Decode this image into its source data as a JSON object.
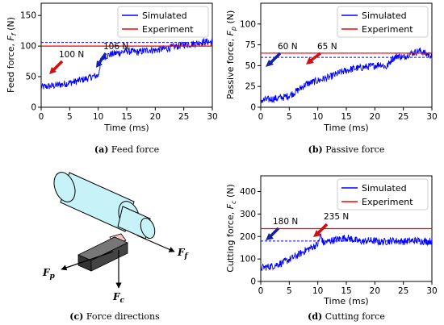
{
  "chart_data": [
    {
      "type": "line",
      "caption_label": "(a)",
      "caption_text": "Feed force",
      "xlabel": "Time (ms)",
      "ylabel": "Feed force, F_f (N)",
      "ylabel_base": "Feed force,",
      "ylabel_symbol": "F",
      "ylabel_sub": "f",
      "ylabel_unit": "(N)",
      "xlim": [
        0,
        30
      ],
      "ylim": [
        0,
        170
      ],
      "xticks": [
        0,
        5,
        10,
        15,
        20,
        25,
        30
      ],
      "yticks": [
        0,
        50,
        100,
        150
      ],
      "legend": {
        "position": "top-right",
        "entries": [
          "Simulated",
          "Experiment"
        ]
      },
      "series": [
        {
          "name": "Simulated",
          "color": "#0000ff",
          "x": [
            0,
            2,
            4,
            6,
            8,
            9,
            10,
            10.5,
            11,
            12,
            13,
            14,
            15,
            16,
            17,
            18,
            19,
            20,
            21,
            22,
            23,
            24,
            25,
            26,
            27,
            28,
            29,
            30
          ],
          "y": [
            33,
            35,
            38,
            42,
            47,
            50,
            52,
            78,
            82,
            86,
            88,
            90,
            92,
            91,
            90,
            92,
            94,
            93,
            95,
            96,
            98,
            100,
            102,
            103,
            104,
            106,
            107,
            106
          ]
        },
        {
          "name": "Experiment",
          "color": "#ff0000",
          "x": [
            0,
            30
          ],
          "y": [
            100,
            100
          ]
        }
      ],
      "reference_lines": [
        {
          "value": 100,
          "label": "100 N",
          "color": "#ff0000"
        },
        {
          "value": 106,
          "label": "106 N",
          "color": "#0000ff"
        }
      ],
      "annotations": [
        {
          "text": "100 N",
          "arrow_color": "#cc1111"
        },
        {
          "text": "106 N",
          "arrow_color": "#1122aa"
        }
      ]
    },
    {
      "type": "line",
      "caption_label": "(b)",
      "caption_text": "Passive force",
      "xlabel": "Time (ms)",
      "ylabel": "Passive force, F_p (N)",
      "ylabel_base": "Passive force,",
      "ylabel_symbol": "F",
      "ylabel_sub": "p",
      "ylabel_unit": "(N)",
      "xlim": [
        0,
        30
      ],
      "ylim": [
        0,
        125
      ],
      "xticks": [
        0,
        5,
        10,
        15,
        20,
        25,
        30
      ],
      "yticks": [
        0,
        25,
        50,
        75,
        100
      ],
      "legend": {
        "position": "top-right",
        "entries": [
          "Simulated",
          "Experiment"
        ]
      },
      "series": [
        {
          "name": "Simulated",
          "color": "#0000ff",
          "x": [
            0,
            2,
            4,
            5,
            6,
            8,
            10,
            12,
            14,
            16,
            18,
            20,
            21,
            22,
            23,
            24,
            25,
            26,
            27,
            28,
            29,
            30
          ],
          "y": [
            8,
            10,
            12,
            14,
            18,
            28,
            32,
            36,
            42,
            46,
            48,
            50,
            52,
            48,
            58,
            62,
            60,
            64,
            66,
            68,
            64,
            62
          ]
        },
        {
          "name": "Experiment",
          "color": "#ff0000",
          "x": [
            0,
            30
          ],
          "y": [
            65,
            65
          ]
        }
      ],
      "reference_lines": [
        {
          "value": 65,
          "label": "65 N",
          "color": "#ff0000"
        },
        {
          "value": 60,
          "label": "60 N",
          "color": "#0000ff"
        }
      ],
      "annotations": [
        {
          "text": "60 N",
          "arrow_color": "#1122aa"
        },
        {
          "text": "65 N",
          "arrow_color": "#cc1111"
        }
      ]
    },
    {
      "type": "line",
      "caption_label": "(d)",
      "caption_text": "Cutting force",
      "xlabel": "Time (ms)",
      "ylabel": "Cutting force, F_c (N)",
      "ylabel_base": "Cutting force,",
      "ylabel_symbol": "F",
      "ylabel_sub": "c",
      "ylabel_unit": "(N)",
      "xlim": [
        0,
        30
      ],
      "ylim": [
        0,
        470
      ],
      "xticks": [
        0,
        5,
        10,
        15,
        20,
        25,
        30
      ],
      "yticks": [
        0,
        100,
        200,
        300,
        400
      ],
      "legend": {
        "position": "top-right",
        "entries": [
          "Simulated",
          "Experiment"
        ]
      },
      "series": [
        {
          "name": "Simulated",
          "color": "#0000ff",
          "x": [
            0,
            2,
            4,
            6,
            8,
            10,
            10.5,
            11,
            12,
            13,
            14,
            15,
            16,
            17,
            18,
            19,
            20,
            21,
            22,
            23,
            24,
            25,
            26,
            27,
            28,
            29,
            30
          ],
          "y": [
            60,
            68,
            85,
            110,
            140,
            165,
            205,
            170,
            180,
            185,
            190,
            195,
            188,
            180,
            178,
            182,
            180,
            175,
            178,
            182,
            180,
            178,
            180,
            182,
            180,
            178,
            180
          ]
        },
        {
          "name": "Experiment",
          "color": "#ff0000",
          "x": [
            0,
            30
          ],
          "y": [
            235,
            235
          ]
        }
      ],
      "reference_lines": [
        {
          "value": 235,
          "label": "235 N",
          "color": "#ff0000"
        },
        {
          "value": 180,
          "label": "180 N",
          "color": "#0000ff"
        }
      ],
      "annotations": [
        {
          "text": "180 N",
          "arrow_color": "#1122aa"
        },
        {
          "text": "235 N",
          "arrow_color": "#cc1111"
        }
      ]
    }
  ],
  "diagram": {
    "caption_label": "(c)",
    "caption_text": "Force directions",
    "labels": [
      {
        "symbol": "F",
        "sub": "f"
      },
      {
        "symbol": "F",
        "sub": "p"
      },
      {
        "symbol": "F",
        "sub": "c"
      }
    ],
    "colors": {
      "workpiece": "#c6f2f8",
      "tool": "#444444",
      "chip": "#f4c6c2"
    }
  }
}
